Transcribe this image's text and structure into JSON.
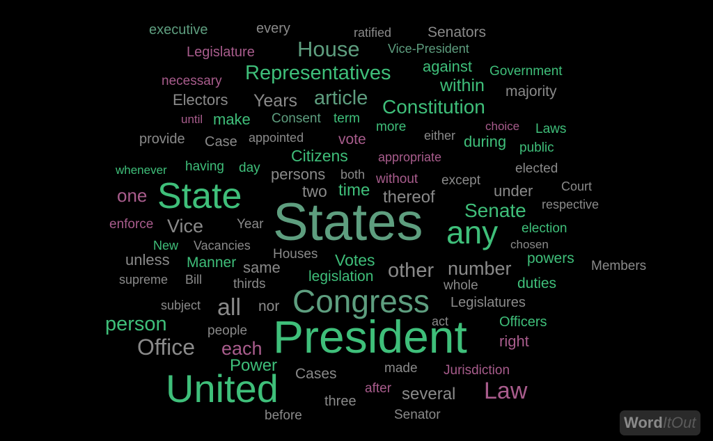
{
  "words": [
    {
      "t": "executive",
      "c": "t"
    },
    {
      "t": "every",
      "c": "s"
    },
    {
      "t": "ratified",
      "c": "s"
    },
    {
      "t": "Senators",
      "c": "s"
    },
    {
      "t": "Legislature",
      "c": "p"
    },
    {
      "t": "House",
      "c": "t"
    },
    {
      "t": "Vice-President",
      "c": "t"
    },
    {
      "t": "necessary",
      "c": "p"
    },
    {
      "t": "Representatives",
      "c": "g"
    },
    {
      "t": "against",
      "c": "g"
    },
    {
      "t": "Government",
      "c": "g"
    },
    {
      "t": "within",
      "c": "g"
    },
    {
      "t": "majority",
      "c": "s"
    },
    {
      "t": "Electors",
      "c": "s"
    },
    {
      "t": "Years",
      "c": "s"
    },
    {
      "t": "article",
      "c": "t"
    },
    {
      "t": "Constitution",
      "c": "g"
    },
    {
      "t": "until",
      "c": "p"
    },
    {
      "t": "make",
      "c": "g"
    },
    {
      "t": "Consent",
      "c": "t"
    },
    {
      "t": "term",
      "c": "g"
    },
    {
      "t": "more",
      "c": "g"
    },
    {
      "t": "choice",
      "c": "p"
    },
    {
      "t": "Laws",
      "c": "g"
    },
    {
      "t": "provide",
      "c": "s"
    },
    {
      "t": "Case",
      "c": "s"
    },
    {
      "t": "appointed",
      "c": "s"
    },
    {
      "t": "vote",
      "c": "p"
    },
    {
      "t": "either",
      "c": "s"
    },
    {
      "t": "during",
      "c": "g"
    },
    {
      "t": "public",
      "c": "g"
    },
    {
      "t": "Citizens",
      "c": "g"
    },
    {
      "t": "appropriate",
      "c": "p"
    },
    {
      "t": "whenever",
      "c": "g"
    },
    {
      "t": "having",
      "c": "g"
    },
    {
      "t": "day",
      "c": "g"
    },
    {
      "t": "persons",
      "c": "s"
    },
    {
      "t": "both",
      "c": "s"
    },
    {
      "t": "without",
      "c": "p"
    },
    {
      "t": "elected",
      "c": "s"
    },
    {
      "t": "except",
      "c": "s"
    },
    {
      "t": "one",
      "c": "p"
    },
    {
      "t": "State",
      "c": "g"
    },
    {
      "t": "two",
      "c": "s"
    },
    {
      "t": "time",
      "c": "g"
    },
    {
      "t": "thereof",
      "c": "s"
    },
    {
      "t": "under",
      "c": "s"
    },
    {
      "t": "Court",
      "c": "s"
    },
    {
      "t": "Senate",
      "c": "g"
    },
    {
      "t": "respective",
      "c": "s"
    },
    {
      "t": "States",
      "c": "t"
    },
    {
      "t": "any",
      "c": "g"
    },
    {
      "t": "enforce",
      "c": "p"
    },
    {
      "t": "Vice",
      "c": "s"
    },
    {
      "t": "Year",
      "c": "s"
    },
    {
      "t": "election",
      "c": "g"
    },
    {
      "t": "chosen",
      "c": "s"
    },
    {
      "t": "New",
      "c": "g"
    },
    {
      "t": "Vacancies",
      "c": "s"
    },
    {
      "t": "unless",
      "c": "s"
    },
    {
      "t": "Houses",
      "c": "s"
    },
    {
      "t": "Manner",
      "c": "g"
    },
    {
      "t": "same",
      "c": "s"
    },
    {
      "t": "Votes",
      "c": "g"
    },
    {
      "t": "other",
      "c": "s"
    },
    {
      "t": "number",
      "c": "s"
    },
    {
      "t": "powers",
      "c": "g"
    },
    {
      "t": "Members",
      "c": "s"
    },
    {
      "t": "supreme",
      "c": "s"
    },
    {
      "t": "Bill",
      "c": "s"
    },
    {
      "t": "thirds",
      "c": "s"
    },
    {
      "t": "legislation",
      "c": "g"
    },
    {
      "t": "whole",
      "c": "s"
    },
    {
      "t": "duties",
      "c": "g"
    },
    {
      "t": "Congress",
      "c": "t"
    },
    {
      "t": "Legislatures",
      "c": "s"
    },
    {
      "t": "subject",
      "c": "s"
    },
    {
      "t": "all",
      "c": "s"
    },
    {
      "t": "nor",
      "c": "s"
    },
    {
      "t": "person",
      "c": "g"
    },
    {
      "t": "act",
      "c": "s"
    },
    {
      "t": "Officers",
      "c": "g"
    },
    {
      "t": "people",
      "c": "s"
    },
    {
      "t": "President",
      "c": "g"
    },
    {
      "t": "right",
      "c": "p"
    },
    {
      "t": "Office",
      "c": "s"
    },
    {
      "t": "each",
      "c": "p"
    },
    {
      "t": "Power",
      "c": "g"
    },
    {
      "t": "made",
      "c": "s"
    },
    {
      "t": "Jurisdiction",
      "c": "p"
    },
    {
      "t": "Cases",
      "c": "s"
    },
    {
      "t": "United",
      "c": "g"
    },
    {
      "t": "after",
      "c": "p"
    },
    {
      "t": "several",
      "c": "s"
    },
    {
      "t": "Law",
      "c": "p"
    },
    {
      "t": "three",
      "c": "s"
    },
    {
      "t": "before",
      "c": "s"
    },
    {
      "t": "Senator",
      "c": "s"
    }
  ],
  "logo": {
    "word": "Word",
    "itout": "ItOut"
  }
}
